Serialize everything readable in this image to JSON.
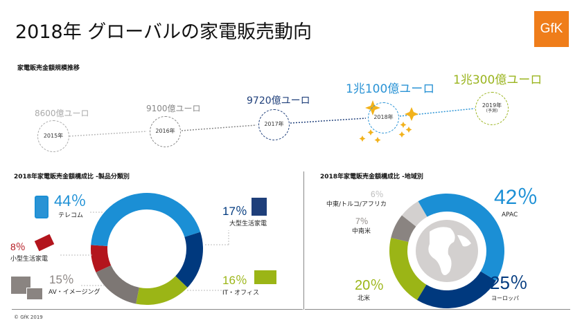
{
  "title": "2018年 グローバルの家電販売動向",
  "logo": "GfK",
  "timeline": {
    "heading": "家電販売金額規模推移",
    "items": [
      {
        "year": "2015年",
        "amount": "8600億ユーロ",
        "color": "#b0b0b0"
      },
      {
        "year": "2016年",
        "amount": "9100億ユーロ",
        "color": "#8a8a8a"
      },
      {
        "year": "2017年",
        "amount": "9720億ユーロ",
        "color": "#1f3f7a"
      },
      {
        "year": "2018年",
        "amount": "1兆100億ユーロ",
        "color": "#2a93d5"
      },
      {
        "year": "2019年",
        "note": "(予測)",
        "amount": "1兆300億ユーロ",
        "color": "#9ab41e"
      }
    ]
  },
  "chart_data": [
    {
      "type": "pie",
      "title": "2018年家電販売金額構成比  -製品分類別",
      "categories": [
        "テレコム",
        "大型生活家電",
        "IT・オフィス",
        "AV・イメージング",
        "小型生活家電"
      ],
      "values": [
        44,
        17,
        16,
        15,
        8
      ],
      "labels": [
        "44％",
        "17％",
        "16％",
        "15％",
        "8％"
      ],
      "colors": [
        "#1b8fd5",
        "#00397e",
        "#9bb516",
        "#7d7774",
        "#b3151d"
      ]
    },
    {
      "type": "pie",
      "title": "2018年家電販売金額構成比  -地域別",
      "categories": [
        "APAC",
        "ヨーロッパ",
        "北米",
        "中南米",
        "中東/トルコ/アフリカ"
      ],
      "values": [
        42,
        25,
        20,
        7,
        6
      ],
      "labels": [
        "42％",
        "25％",
        "20％",
        "7％",
        "6％"
      ],
      "colors": [
        "#1b8fd5",
        "#00397e",
        "#9bb516",
        "#8a8481",
        "#d3d0cf"
      ]
    }
  ],
  "footer": "© GfK 2019"
}
